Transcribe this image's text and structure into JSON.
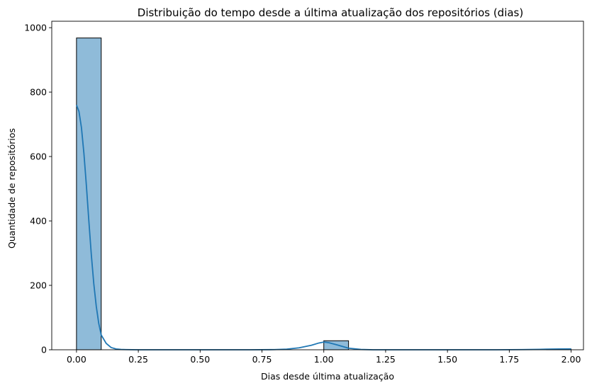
{
  "chart_data": {
    "type": "histogram",
    "title": "Distribuição do tempo desde a última atualização dos repositórios (dias)",
    "xlabel": "Dias desde última atualização",
    "ylabel": "Quantidade de repositórios",
    "xlim": [
      -0.1,
      2.05
    ],
    "ylim": [
      0,
      1020
    ],
    "xticks": [
      0.0,
      0.25,
      0.5,
      0.75,
      1.0,
      1.25,
      1.5,
      1.75,
      2.0
    ],
    "xtick_labels": [
      "0.00",
      "0.25",
      "0.50",
      "0.75",
      "1.00",
      "1.25",
      "1.50",
      "1.75",
      "2.00"
    ],
    "yticks": [
      0,
      200,
      400,
      600,
      800,
      1000
    ],
    "ytick_labels": [
      "0",
      "200",
      "400",
      "600",
      "800",
      "1000"
    ],
    "bin_width": 0.1,
    "bins": [
      {
        "start": 0.0,
        "end": 0.1,
        "count": 968
      },
      {
        "start": 1.0,
        "end": 1.1,
        "count": 28
      },
      {
        "start": 1.9,
        "end": 2.0,
        "count": 2
      }
    ],
    "kde": {
      "x": [
        0.0,
        0.01,
        0.02,
        0.03,
        0.04,
        0.05,
        0.06,
        0.07,
        0.08,
        0.09,
        0.1,
        0.12,
        0.14,
        0.16,
        0.18,
        0.2,
        0.25,
        0.3,
        0.5,
        0.7,
        0.8,
        0.85,
        0.9,
        0.95,
        0.98,
        1.0,
        1.02,
        1.05,
        1.1,
        1.15,
        1.2,
        1.3,
        1.5,
        1.7,
        1.8,
        1.85,
        1.9,
        1.95,
        2.0
      ],
      "y": [
        760,
        740,
        690,
        610,
        510,
        400,
        295,
        205,
        135,
        82,
        46,
        20,
        7,
        2.5,
        1,
        0.5,
        0,
        0,
        0,
        0,
        0.5,
        2,
        6,
        14,
        21,
        24,
        22,
        16,
        5,
        1,
        0,
        0,
        0,
        0,
        0.5,
        1,
        1.8,
        2.4,
        2.6
      ]
    },
    "colors": {
      "bar_fill": "#1f77b4",
      "bar_fill_opacity": 0.5,
      "bar_edge": "#000000",
      "kde_line": "#1f77b4"
    },
    "grid": false,
    "legend": "none"
  }
}
